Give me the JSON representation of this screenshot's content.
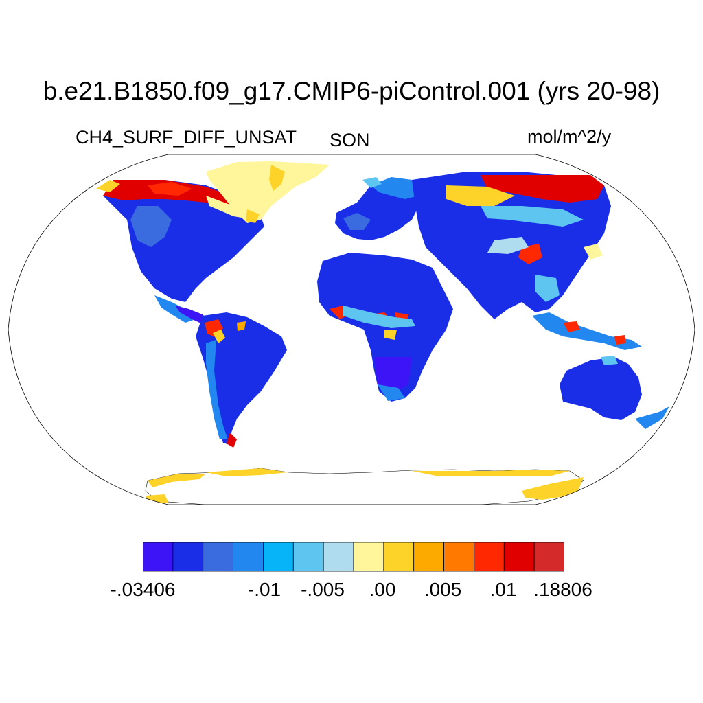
{
  "header": {
    "title": "b.e21.B1850.f09_g17.CMIP6-piControl.001 (yrs 20-98)",
    "variable": "CH4_SURF_DIFF_UNSAT",
    "season": "SON",
    "units": "mol/m^2/y"
  },
  "colorbar": {
    "colors": [
      "#3c14f5",
      "#1a2ee8",
      "#3a6ce0",
      "#2288f0",
      "#08b4f8",
      "#5ec4f0",
      "#b0dcf0",
      "#fff59a",
      "#fdd32a",
      "#fcaa00",
      "#ff7800",
      "#ff2800",
      "#e00000",
      "#d42a2a"
    ],
    "labels": [
      "-.03406",
      "-.01",
      "-.005",
      ".00",
      ".005",
      ".01",
      ".18806"
    ]
  },
  "map": {
    "projection": "Robinson",
    "field": "CH4_SURF_DIFF_UNSAT",
    "regions": [
      "North America",
      "Greenland",
      "South America",
      "Europe",
      "Africa",
      "Asia",
      "Australia",
      "Antarctica"
    ]
  }
}
